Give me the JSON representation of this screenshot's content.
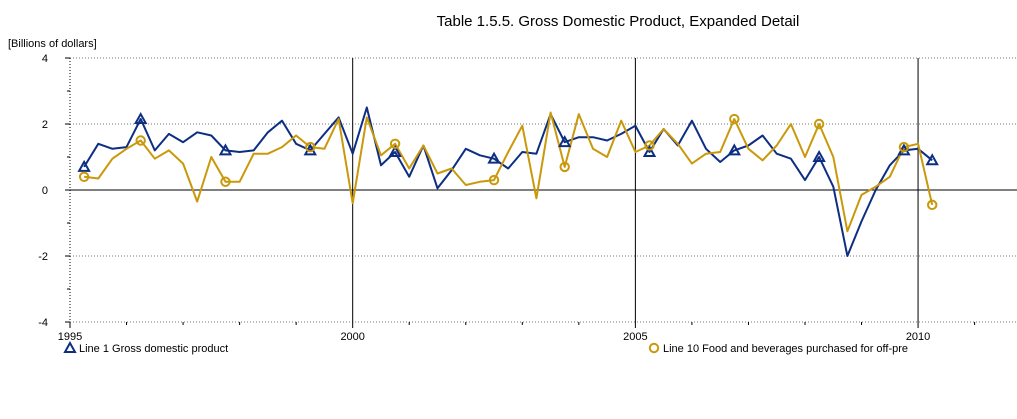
{
  "chart_data": {
    "type": "line",
    "title": "Table 1.5.5. Gross Domestic Product, Expanded Detail",
    "ylabel": "[Billions of dollars]",
    "xlabel": "",
    "xlim": [
      1995.0,
      2011.75
    ],
    "ylim": [
      -4,
      4
    ],
    "y_ticks": [
      -4,
      -2,
      0,
      2,
      4
    ],
    "x_tick_labels": [
      {
        "value": 1995,
        "label": "1995"
      },
      {
        "value": 2000,
        "label": "2000"
      },
      {
        "value": 2005,
        "label": "2005"
      },
      {
        "value": 2010,
        "label": "2010"
      }
    ],
    "grid": true,
    "legend_position": "bottom",
    "series": [
      {
        "name": "Line 1  Gross domestic product",
        "color": "#0d2e82",
        "marker": "triangle",
        "x": [
          1995.25,
          1995.5,
          1995.75,
          1996.0,
          1996.25,
          1996.5,
          1996.75,
          1997.0,
          1997.25,
          1997.5,
          1997.75,
          1998.0,
          1998.25,
          1998.5,
          1998.75,
          1999.0,
          1999.25,
          1999.5,
          1999.75,
          2000.0,
          2000.25,
          2000.5,
          2000.75,
          2001.0,
          2001.25,
          2001.5,
          2001.75,
          2002.0,
          2002.25,
          2002.5,
          2002.75,
          2003.0,
          2003.25,
          2003.5,
          2003.75,
          2004.0,
          2004.25,
          2004.5,
          2004.75,
          2005.0,
          2005.25,
          2005.5,
          2005.75,
          2006.0,
          2006.25,
          2006.5,
          2006.75,
          2007.0,
          2007.25,
          2007.5,
          2007.75,
          2008.0,
          2008.25,
          2008.5,
          2008.75,
          2009.0,
          2009.25,
          2009.5,
          2009.75,
          2010.0,
          2010.25
        ],
        "values": [
          0.7,
          1.4,
          1.25,
          1.3,
          2.15,
          1.2,
          1.7,
          1.45,
          1.75,
          1.65,
          1.2,
          1.15,
          1.2,
          1.75,
          2.1,
          1.4,
          1.2,
          1.7,
          2.2,
          1.1,
          2.5,
          0.75,
          1.15,
          0.4,
          1.35,
          0.05,
          0.6,
          1.25,
          1.05,
          0.95,
          0.65,
          1.15,
          1.1,
          2.3,
          1.45,
          1.6,
          1.6,
          1.5,
          1.7,
          1.95,
          1.15,
          1.85,
          1.35,
          2.1,
          1.25,
          0.85,
          1.2,
          1.35,
          1.65,
          1.1,
          0.95,
          0.3,
          1.0,
          0.1,
          -2.0,
          -0.95,
          0.0,
          0.75,
          1.2,
          1.25,
          0.9
        ],
        "marker_x": [
          1995.25,
          1996.25,
          1997.75,
          1999.25,
          2000.75,
          2002.5,
          2003.75,
          2005.25,
          2006.75,
          2008.25,
          2009.75,
          2010.25
        ]
      },
      {
        "name": "Line 10  Food and beverages purchased for off-pre",
        "color": "#c9990b",
        "marker": "circle",
        "x": [
          1995.25,
          1995.5,
          1995.75,
          1996.0,
          1996.25,
          1996.5,
          1996.75,
          1997.0,
          1997.25,
          1997.5,
          1997.75,
          1998.0,
          1998.25,
          1998.5,
          1998.75,
          1999.0,
          1999.25,
          1999.5,
          1999.75,
          2000.0,
          2000.25,
          2000.5,
          2000.75,
          2001.0,
          2001.25,
          2001.5,
          2001.75,
          2002.0,
          2002.25,
          2002.5,
          2002.75,
          2003.0,
          2003.25,
          2003.5,
          2003.75,
          2004.0,
          2004.25,
          2004.5,
          2004.75,
          2005.0,
          2005.25,
          2005.5,
          2005.75,
          2006.0,
          2006.25,
          2006.5,
          2006.75,
          2007.0,
          2007.25,
          2007.5,
          2007.75,
          2008.0,
          2008.25,
          2008.5,
          2008.75,
          2009.0,
          2009.25,
          2009.5,
          2009.75,
          2010.0,
          2010.25
        ],
        "values": [
          0.4,
          0.35,
          0.95,
          1.25,
          1.5,
          0.95,
          1.2,
          0.8,
          -0.35,
          1.0,
          0.25,
          0.25,
          1.1,
          1.1,
          1.3,
          1.65,
          1.3,
          1.25,
          2.15,
          -0.4,
          2.2,
          1.05,
          1.4,
          0.65,
          1.35,
          0.5,
          0.65,
          0.15,
          0.25,
          0.3,
          1.15,
          1.95,
          -0.25,
          2.35,
          0.7,
          2.3,
          1.25,
          1.0,
          2.1,
          1.15,
          1.35,
          1.85,
          1.4,
          0.8,
          1.1,
          1.15,
          2.15,
          1.25,
          0.9,
          1.35,
          2.0,
          1.0,
          2.0,
          1.0,
          -1.25,
          -0.15,
          0.1,
          0.4,
          1.3,
          1.4,
          -0.45
        ],
        "marker_x": [
          1995.25,
          1996.25,
          1997.75,
          1999.25,
          2000.75,
          2002.5,
          2003.75,
          2005.25,
          2006.75,
          2008.25,
          2009.75,
          2010.25
        ]
      }
    ]
  }
}
